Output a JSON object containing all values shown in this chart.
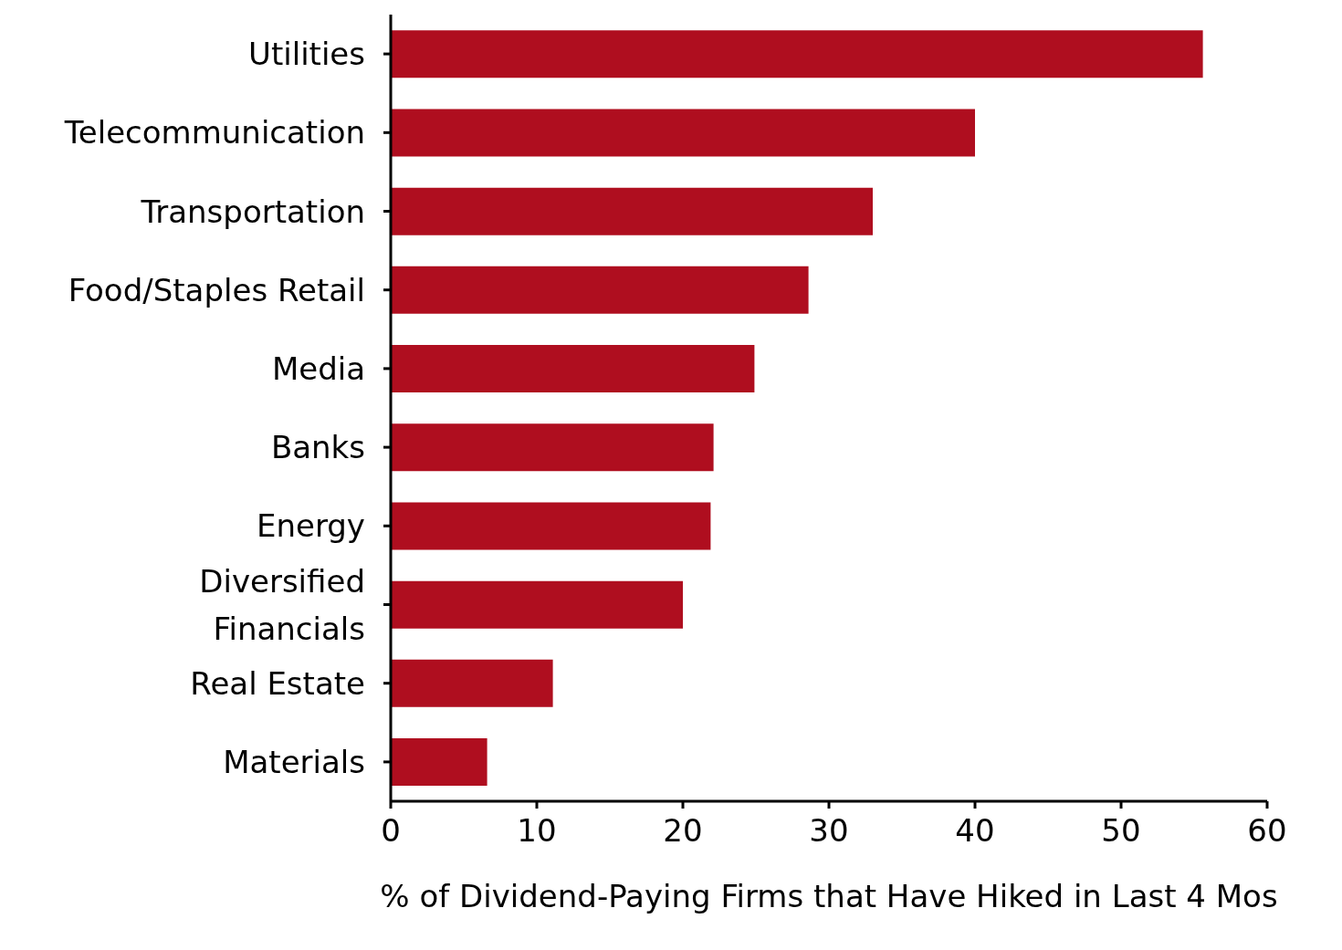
{
  "chart_data": {
    "type": "bar",
    "orientation": "horizontal",
    "xlabel": "% of Dividend-Paying Firms that Have Hiked in Last 4 Mos",
    "categories": [
      "Utilities",
      "Telecommunication",
      "Transportation",
      "Food/Staples Retail",
      "Media",
      "Banks",
      "Energy",
      "Diversified Financials",
      "Real Estate",
      "Materials"
    ],
    "values": [
      55.6,
      40,
      33,
      28.6,
      24.9,
      22.1,
      21.9,
      20,
      11.1,
      6.6
    ],
    "color": "#af0e1f",
    "xlim": [
      0,
      60
    ],
    "xticks": [
      0,
      10,
      20,
      30,
      40,
      50,
      60
    ],
    "grid": false,
    "legend": false
  }
}
